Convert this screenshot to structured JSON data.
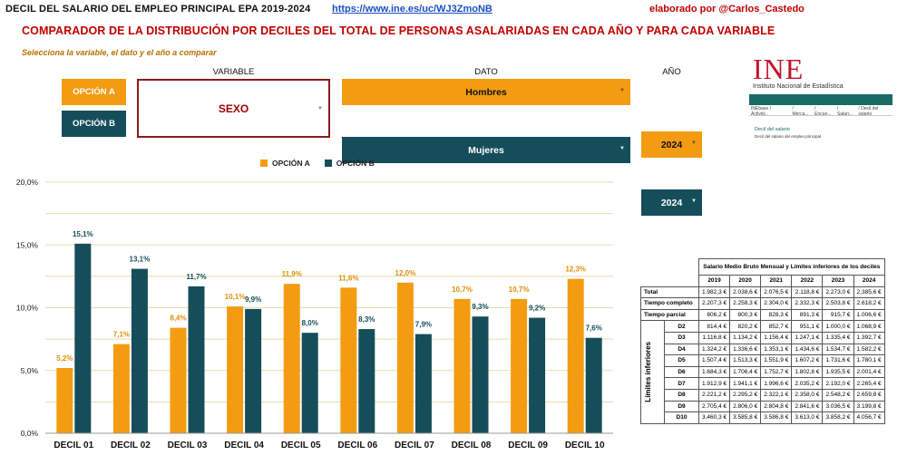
{
  "header": {
    "title": "DECIL DEL SALARIO DEL EMPLEO PRINCIPAL EPA 2019-2024",
    "link": "https://www.ine.es/uc/WJ3ZmoNB",
    "author": "elaborado por @Carlos_Castedo"
  },
  "main_title": "COMPARADOR DE LA DISTRIBUCIÓN POR DECILES DEL TOTAL DE PERSONAS ASALARIADAS EN CADA AÑO Y PARA CADA VARIABLE",
  "subtitle": "Selecciona la variable, el dato y el año a comparar",
  "controls": {
    "variable_label": "VARIABLE",
    "dato_label": "DATO",
    "anio_label": "AÑO",
    "option_a_label": "OPCIÓN A",
    "option_b_label": "OPCIÓN B",
    "variable_value": "SEXO",
    "dato_a": "Hombres",
    "dato_b": "Mujeres",
    "anio_a": "2024",
    "anio_b": "2024",
    "dropdown_icon": "chevron-down-icon"
  },
  "colors": {
    "option_a": "#F39C12",
    "option_b": "#154E5A",
    "title_red": "#C00000",
    "grid": "#E6DDA8"
  },
  "chart_data": {
    "type": "bar",
    "categories": [
      "DECIL 01",
      "DECIL 02",
      "DECIL 03",
      "DECIL 04",
      "DECIL 05",
      "DECIL 06",
      "DECIL 07",
      "DECIL 08",
      "DECIL 09",
      "DECIL 10"
    ],
    "series": [
      {
        "name": "OPCIÓN A",
        "values": [
          5.2,
          7.1,
          8.4,
          10.1,
          11.9,
          11.6,
          12.0,
          10.7,
          10.7,
          12.3
        ],
        "labels": [
          "5,2%",
          "7,1%",
          "8,4%",
          "10,1%",
          "11,9%",
          "11,6%",
          "12,0%",
          "10,7%",
          "10,7%",
          "12,3%"
        ]
      },
      {
        "name": "OPCIÓN B",
        "values": [
          15.1,
          13.1,
          11.7,
          9.9,
          8.0,
          8.3,
          7.9,
          9.3,
          9.2,
          7.6
        ],
        "labels": [
          "15,1%",
          "13,1%",
          "11,7%",
          "9,9%",
          "8,0%",
          "8,3%",
          "7,9%",
          "9,3%",
          "9,2%",
          "7,6%"
        ]
      }
    ],
    "yticks": [
      "0,0%",
      "5,0%",
      "10,0%",
      "15,0%",
      "20,0%"
    ],
    "ylim": [
      0,
      20
    ],
    "grid": true,
    "legend_position": "top"
  },
  "ine": {
    "logo_text": "INE",
    "name": "Instituto Nacional de Estadística",
    "nav": [
      "INEbase / Activid...",
      "/ Merca...",
      "/ Encue...",
      "/ Salari...",
      "/ Decil del salario"
    ],
    "section": "Decil del salario",
    "section_sub": "Decil del salario del empleo principal"
  },
  "salary_table": {
    "title": "Salario Medio Bruto Mensual y Límites inferiores de los deciles",
    "years": [
      "2019",
      "2020",
      "2021",
      "2022",
      "2023",
      "2024"
    ],
    "rows": [
      {
        "label": "Total",
        "values": [
          "1.982,3 €",
          "2.038,6 €",
          "2.076,5 €",
          "2.118,8 €",
          "2.273,0 €",
          "2.385,6 €"
        ]
      },
      {
        "label": "Tiempo completo",
        "values": [
          "2.207,3 €",
          "2.258,3 €",
          "2.304,0 €",
          "2.332,3 €",
          "2.503,8 €",
          "2.618,2 €"
        ]
      },
      {
        "label": "Tiempo parcial",
        "values": [
          "806,2 €",
          "800,3 €",
          "828,3 €",
          "891,3 €",
          "915,7 €",
          "1.006,6 €"
        ]
      }
    ],
    "limits_label": "Límites inferiores",
    "deciles": [
      {
        "label": "D2",
        "values": [
          "814,4 €",
          "820,2 €",
          "852,7 €",
          "951,1 €",
          "1.000,0 €",
          "1.068,9 €"
        ]
      },
      {
        "label": "D3",
        "values": [
          "1.116,8 €",
          "1.134,2 €",
          "1.156,4 €",
          "1.247,1 €",
          "1.335,4 €",
          "1.392,7 €"
        ]
      },
      {
        "label": "D4",
        "values": [
          "1.324,2 €",
          "1.336,6 €",
          "1.353,1 €",
          "1.434,6 €",
          "1.534,7 €",
          "1.582,2 €"
        ]
      },
      {
        "label": "D5",
        "values": [
          "1.507,4 €",
          "1.513,3 €",
          "1.551,9 €",
          "1.607,2 €",
          "1.731,6 €",
          "1.780,1 €"
        ]
      },
      {
        "label": "D6",
        "values": [
          "1.684,3 €",
          "1.706,4 €",
          "1.752,7 €",
          "1.802,8 €",
          "1.935,5 €",
          "2.001,4 €"
        ]
      },
      {
        "label": "D7",
        "values": [
          "1.912,9 €",
          "1.941,1 €",
          "1.996,6 €",
          "2.035,2 €",
          "2.192,0 €",
          "2.265,4 €"
        ]
      },
      {
        "label": "D8",
        "values": [
          "2.221,2 €",
          "2.295,2 €",
          "2.322,1 €",
          "2.358,0 €",
          "2.548,2 €",
          "2.659,8 €"
        ]
      },
      {
        "label": "D9",
        "values": [
          "2.705,4 €",
          "2.806,0 €",
          "2.804,8 €",
          "2.841,6 €",
          "3.036,5 €",
          "3.199,8 €"
        ]
      },
      {
        "label": "D10",
        "values": [
          "3.460,3 €",
          "3.585,8 €",
          "3.586,8 €",
          "3.613,0 €",
          "3.858,2 €",
          "4.056,7 €"
        ]
      }
    ]
  }
}
